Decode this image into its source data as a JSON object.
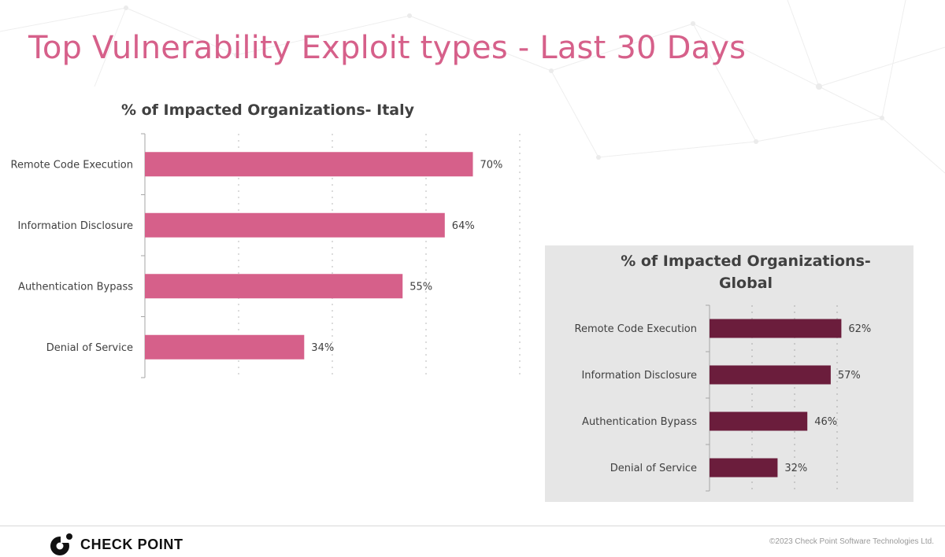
{
  "slide": {
    "title": "Top Vulnerability Exploit types - Last 30 Days",
    "title_color": "#d6608a"
  },
  "chart_data": [
    {
      "type": "bar",
      "orientation": "horizontal",
      "title": "% of Impacted Organizations- Italy",
      "categories": [
        "Remote Code Execution",
        "Information Disclosure",
        "Authentication Bypass",
        "Denial of Service"
      ],
      "values": [
        70,
        64,
        55,
        34
      ],
      "value_labels": [
        "70%",
        "64%",
        "55%",
        "34%"
      ],
      "xlim": [
        0,
        80
      ],
      "grid": true,
      "color": "#d6608a"
    },
    {
      "type": "bar",
      "orientation": "horizontal",
      "title": "% of Impacted Organizations-\nGlobal",
      "categories": [
        "Remote Code Execution",
        "Information Disclosure",
        "Authentication Bypass",
        "Denial of Service"
      ],
      "values": [
        62,
        57,
        46,
        32
      ],
      "value_labels": [
        "62%",
        "57%",
        "46%",
        "32%"
      ],
      "xlim": [
        0,
        70
      ],
      "grid": true,
      "color": "#6b1d3c"
    }
  ],
  "footer": {
    "logo_text": "CHECK POINT",
    "logo_icon": "check-point-logo-icon",
    "copyright": "©2023 Check Point Software Technologies Ltd."
  }
}
